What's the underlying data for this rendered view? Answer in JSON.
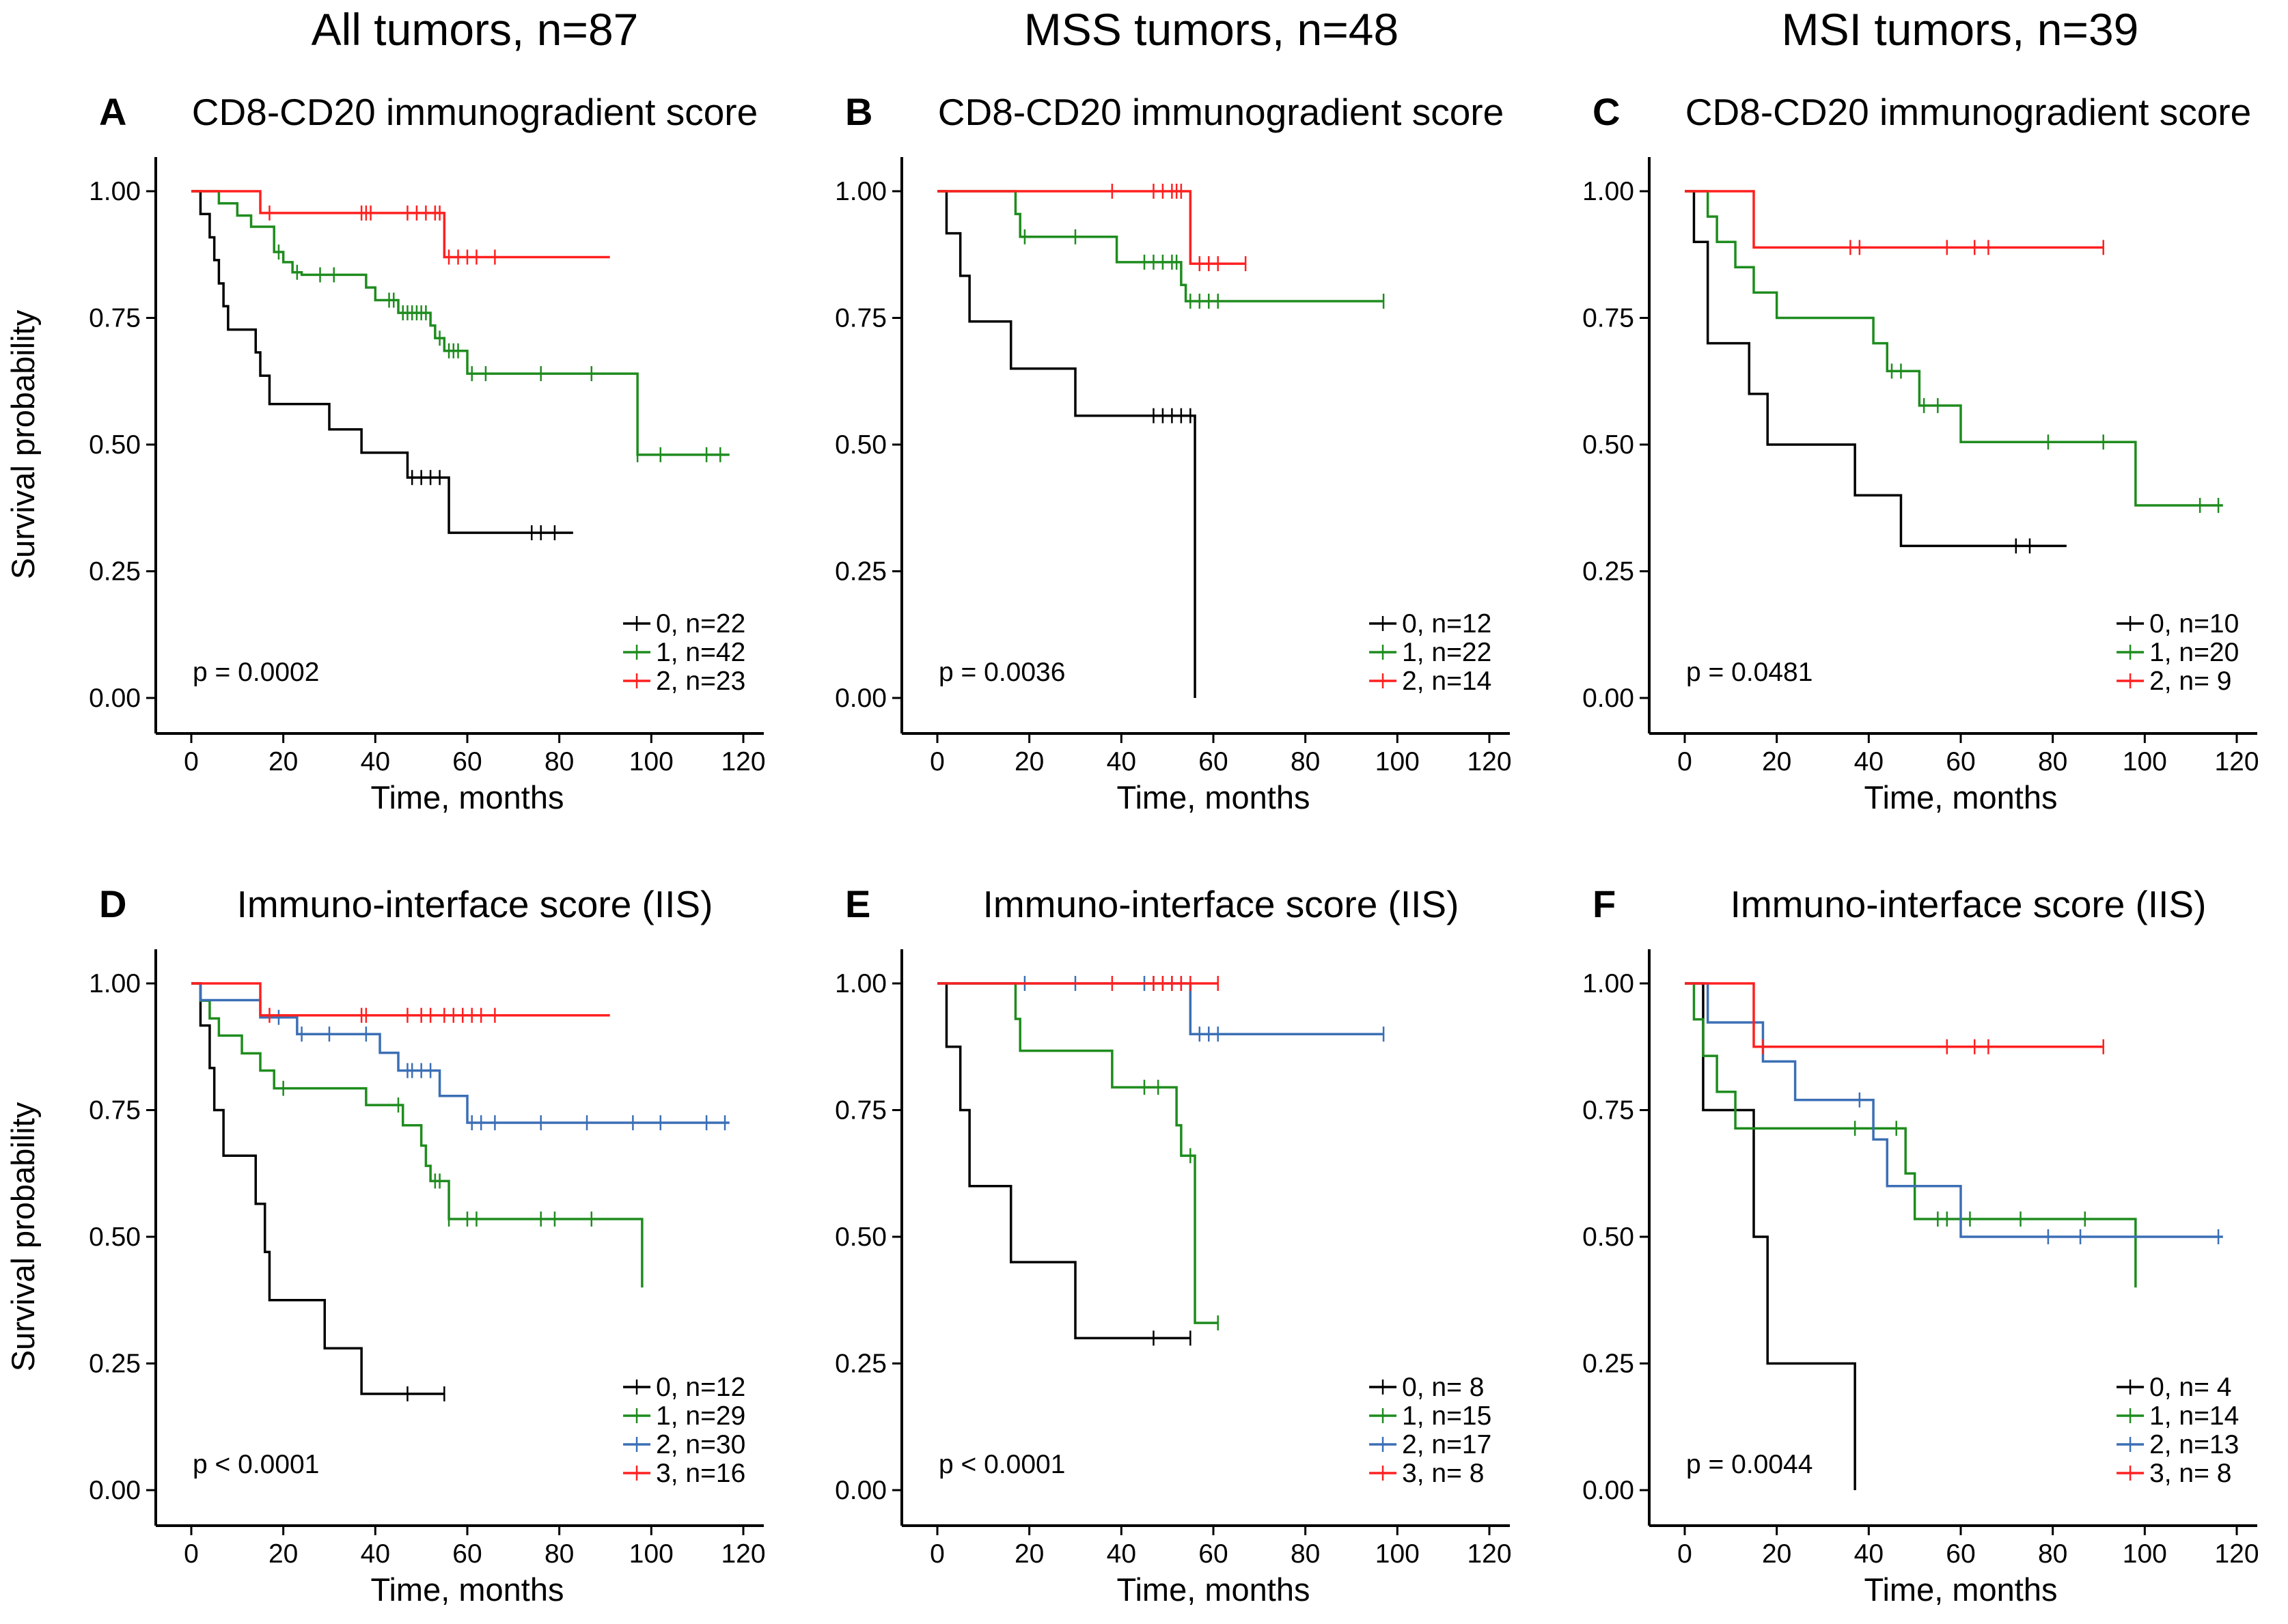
{
  "column_titles": [
    "All tumors, n=87",
    "MSS tumors, n=48",
    "MSI tumors, n=39"
  ],
  "colors": {
    "0": "#000000",
    "1": "#1e8c1e",
    "2_cd": "#ff2020",
    "2_iis": "#3b6fb5",
    "3": "#ff2020"
  },
  "chart_data": [
    {
      "type": "line",
      "panel": "A",
      "title": "CD8-CD20 immunogradient score",
      "xlabel": "Time, months",
      "ylabel": "Survival probability",
      "xlim": [
        0,
        120
      ],
      "ylim": [
        0,
        1
      ],
      "xticks": [
        "0",
        "20",
        "40",
        "60",
        "80",
        "100",
        "120"
      ],
      "yticks": [
        "0.00",
        "0.25",
        "0.50",
        "0.75",
        "1.00"
      ],
      "pvalue": "p = 0.0002",
      "series": [
        {
          "name": "0, n=22",
          "color": "#000000",
          "end": 83,
          "steps": [
            [
              0,
              1
            ],
            [
              2,
              0.955
            ],
            [
              4,
              0.909
            ],
            [
              5,
              0.864
            ],
            [
              6,
              0.818
            ],
            [
              7,
              0.773
            ],
            [
              8,
              0.727
            ],
            [
              14,
              0.682
            ],
            [
              15,
              0.636
            ],
            [
              17,
              0.58
            ],
            [
              30,
              0.53
            ],
            [
              37,
              0.484
            ],
            [
              47,
              0.435
            ],
            [
              56,
              0.326
            ]
          ],
          "censor": [
            48,
            50,
            52,
            54,
            74,
            76,
            79
          ]
        },
        {
          "name": "1, n=42",
          "color": "#1e8c1e",
          "end": 117,
          "steps": [
            [
              0,
              1
            ],
            [
              6,
              0.976
            ],
            [
              10,
              0.952
            ],
            [
              13,
              0.93
            ],
            [
              18,
              0.905
            ],
            [
              18,
              0.88
            ],
            [
              20,
              0.86
            ],
            [
              22,
              0.84
            ],
            [
              24,
              0.835
            ],
            [
              38,
              0.81
            ],
            [
              40,
              0.785
            ],
            [
              45,
              0.76
            ],
            [
              52,
              0.735
            ],
            [
              53,
              0.71
            ],
            [
              55,
              0.685
            ],
            [
              60,
              0.64
            ],
            [
              97,
              0.48
            ]
          ],
          "censor": [
            19,
            23,
            28,
            31,
            43,
            44,
            46,
            47,
            48,
            49,
            50,
            51,
            54,
            56,
            57,
            58,
            61,
            64,
            76,
            87,
            97,
            102,
            112,
            115
          ]
        },
        {
          "name": "2, n=23",
          "color": "#ff2020",
          "end": 91,
          "steps": [
            [
              0,
              1
            ],
            [
              15,
              0.957
            ],
            [
              55,
              0.87
            ]
          ],
          "censor": [
            17,
            37,
            38,
            39,
            47,
            49,
            51,
            53,
            54,
            56,
            58,
            60,
            62,
            66
          ]
        }
      ]
    },
    {
      "type": "line",
      "panel": "B",
      "title": "CD8-CD20 immunogradient score",
      "xlabel": "Time, months",
      "ylabel": "",
      "xlim": [
        0,
        120
      ],
      "ylim": [
        0,
        1
      ],
      "xticks": [
        "0",
        "20",
        "40",
        "60",
        "80",
        "100",
        "120"
      ],
      "yticks": [
        "0.00",
        "0.25",
        "0.50",
        "0.75",
        "1.00"
      ],
      "pvalue": "p = 0.0036",
      "series": [
        {
          "name": "0, n=12",
          "color": "#000000",
          "end": 56,
          "steps": [
            [
              0,
              1
            ],
            [
              2,
              0.917
            ],
            [
              5,
              0.833
            ],
            [
              6,
              0.833
            ],
            [
              7,
              0.743
            ],
            [
              16,
              0.65
            ],
            [
              30,
              0.557
            ],
            [
              56,
              0
            ]
          ],
          "censor": [
            47,
            49,
            51,
            53,
            55
          ]
        },
        {
          "name": "1, n=22",
          "color": "#1e8c1e",
          "end": 97,
          "steps": [
            [
              0,
              1
            ],
            [
              17,
              0.955
            ],
            [
              18,
              0.91
            ],
            [
              39,
              0.86
            ],
            [
              53,
              0.815
            ],
            [
              54,
              0.783
            ]
          ],
          "censor": [
            19,
            30,
            45,
            47,
            49,
            51,
            52,
            55,
            57,
            59,
            61,
            97
          ]
        },
        {
          "name": "2, n=14",
          "color": "#ff2020",
          "end": 67,
          "steps": [
            [
              0,
              1
            ],
            [
              55,
              0.857
            ]
          ],
          "censor": [
            38,
            47,
            49,
            51,
            52,
            53,
            57,
            59,
            61,
            67
          ]
        }
      ]
    },
    {
      "type": "line",
      "panel": "C",
      "title": "CD8-CD20 immunogradient score",
      "xlabel": "Time, months",
      "ylabel": "",
      "xlim": [
        0,
        120
      ],
      "ylim": [
        0,
        1
      ],
      "xticks": [
        "0",
        "20",
        "40",
        "60",
        "80",
        "100",
        "120"
      ],
      "yticks": [
        "0.00",
        "0.25",
        "0.50",
        "0.75",
        "1.00"
      ],
      "pvalue": "p = 0.0481",
      "series": [
        {
          "name": "0, n=10",
          "color": "#000000",
          "end": 83,
          "steps": [
            [
              0,
              1
            ],
            [
              2,
              0.9
            ],
            [
              5,
              0.8
            ],
            [
              5,
              0.7
            ],
            [
              14,
              0.6
            ],
            [
              18,
              0.5
            ],
            [
              37,
              0.4
            ],
            [
              47,
              0.3
            ]
          ],
          "censor": [
            72,
            75
          ]
        },
        {
          "name": "1, n=20",
          "color": "#1e8c1e",
          "end": 117,
          "steps": [
            [
              0,
              1
            ],
            [
              5,
              0.95
            ],
            [
              7,
              0.9
            ],
            [
              11,
              0.85
            ],
            [
              15,
              0.8
            ],
            [
              20,
              0.75
            ],
            [
              41,
              0.7
            ],
            [
              44,
              0.645
            ],
            [
              51,
              0.577
            ],
            [
              60,
              0.505
            ],
            [
              98,
              0.38
            ]
          ],
          "censor": [
            45,
            47,
            52,
            55,
            79,
            91,
            112,
            116
          ]
        },
        {
          "name": "2, n=  9",
          "color": "#ff2020",
          "end": 91,
          "steps": [
            [
              0,
              1
            ],
            [
              15,
              0.889
            ]
          ],
          "censor": [
            36,
            38,
            57,
            63,
            66,
            91
          ]
        }
      ]
    },
    {
      "type": "line",
      "panel": "D",
      "title": "Immuno-interface score (IIS)",
      "xlabel": "Time, months",
      "ylabel": "Survival probability",
      "xlim": [
        0,
        120
      ],
      "ylim": [
        0,
        1
      ],
      "xticks": [
        "0",
        "20",
        "40",
        "60",
        "80",
        "100",
        "120"
      ],
      "yticks": [
        "0.00",
        "0.25",
        "0.50",
        "0.75",
        "1.00"
      ],
      "pvalue": "p < 0.0001",
      "series": [
        {
          "name": "0, n=12",
          "color": "#000000",
          "end": 55,
          "steps": [
            [
              0,
              1
            ],
            [
              2,
              0.917
            ],
            [
              4,
              0.833
            ],
            [
              5,
              0.75
            ],
            [
              7,
              0.66
            ],
            [
              14,
              0.565
            ],
            [
              16,
              0.47
            ],
            [
              17,
              0.375
            ],
            [
              29,
              0.28
            ],
            [
              37,
              0.19
            ]
          ],
          "censor": [
            47,
            55
          ]
        },
        {
          "name": "1, n=29",
          "color": "#1e8c1e",
          "end": 98,
          "steps": [
            [
              0,
              1
            ],
            [
              2,
              0.966
            ],
            [
              4,
              0.931
            ],
            [
              6,
              0.897
            ],
            [
              11,
              0.862
            ],
            [
              15,
              0.828
            ],
            [
              18,
              0.793
            ],
            [
              38,
              0.76
            ],
            [
              46,
              0.72
            ],
            [
              50,
              0.68
            ],
            [
              51,
              0.64
            ],
            [
              52,
              0.61
            ],
            [
              56,
              0.535
            ],
            [
              98,
              0.4
            ]
          ],
          "censor": [
            20,
            45,
            53,
            54,
            56,
            60,
            62,
            76,
            79,
            87
          ]
        },
        {
          "name": "2, n=30",
          "color": "#3b6fb5",
          "end": 117,
          "steps": [
            [
              0,
              1
            ],
            [
              2,
              0.967
            ],
            [
              15,
              0.933
            ],
            [
              23,
              0.9
            ],
            [
              41,
              0.863
            ],
            [
              45,
              0.828
            ],
            [
              54,
              0.778
            ],
            [
              60,
              0.725
            ]
          ],
          "censor": [
            19,
            24,
            30,
            38,
            47,
            48,
            50,
            52,
            61,
            63,
            66,
            76,
            86,
            96,
            102,
            112,
            116
          ]
        },
        {
          "name": "3, n=16",
          "color": "#ff2020",
          "end": 91,
          "steps": [
            [
              0,
              1
            ],
            [
              15,
              0.937
            ]
          ],
          "censor": [
            17,
            37,
            38,
            47,
            50,
            52,
            55,
            57,
            59,
            61,
            63,
            66
          ]
        }
      ]
    },
    {
      "type": "line",
      "panel": "E",
      "title": "Immuno-interface score (IIS)",
      "xlabel": "Time, months",
      "ylabel": "",
      "xlim": [
        0,
        120
      ],
      "ylim": [
        0,
        1
      ],
      "xticks": [
        "0",
        "20",
        "40",
        "60",
        "80",
        "100",
        "120"
      ],
      "yticks": [
        "0.00",
        "0.25",
        "0.50",
        "0.75",
        "1.00"
      ],
      "pvalue": "p < 0.0001",
      "series": [
        {
          "name": "0, n=  8",
          "color": "#000000",
          "end": 55,
          "steps": [
            [
              0,
              1
            ],
            [
              2,
              0.875
            ],
            [
              5,
              0.75
            ],
            [
              6,
              0.75
            ],
            [
              7,
              0.6
            ],
            [
              16,
              0.45
            ],
            [
              30,
              0.3
            ]
          ],
          "censor": [
            47,
            55
          ]
        },
        {
          "name": "1, n=15",
          "color": "#1e8c1e",
          "end": 61,
          "steps": [
            [
              0,
              1
            ],
            [
              17,
              0.93
            ],
            [
              18,
              0.867
            ],
            [
              38,
              0.795
            ],
            [
              52,
              0.72
            ],
            [
              53,
              0.66
            ],
            [
              56,
              0.33
            ]
          ],
          "censor": [
            45,
            48,
            55,
            61
          ]
        },
        {
          "name": "2, n=17",
          "color": "#3b6fb5",
          "end": 97,
          "steps": [
            [
              0,
              1
            ],
            [
              55,
              0.9
            ]
          ],
          "censor": [
            19,
            30,
            45,
            47,
            49,
            51,
            53,
            57,
            59,
            61,
            97
          ]
        },
        {
          "name": "3, n=  8",
          "color": "#ff2020",
          "end": 61,
          "steps": [
            [
              0,
              1
            ]
          ],
          "censor": [
            38,
            47,
            49,
            51,
            53,
            55,
            61
          ]
        }
      ]
    },
    {
      "type": "line",
      "panel": "F",
      "title": "Immuno-interface score (IIS)",
      "xlabel": "Time, months",
      "ylabel": "",
      "xlim": [
        0,
        120
      ],
      "ylim": [
        0,
        1
      ],
      "xticks": [
        "0",
        "20",
        "40",
        "60",
        "80",
        "100",
        "120"
      ],
      "yticks": [
        "0.00",
        "0.25",
        "0.50",
        "0.75",
        "1.00"
      ],
      "pvalue": "p = 0.0044",
      "series": [
        {
          "name": "0, n=  4",
          "color": "#000000",
          "end": 37,
          "steps": [
            [
              0,
              1
            ],
            [
              4,
              0.75
            ],
            [
              15,
              0.5
            ],
            [
              18,
              0.25
            ],
            [
              37,
              0
            ]
          ],
          "censor": []
        },
        {
          "name": "1, n=14",
          "color": "#1e8c1e",
          "end": 98,
          "steps": [
            [
              0,
              1
            ],
            [
              2,
              0.929
            ],
            [
              4,
              0.857
            ],
            [
              7,
              0.786
            ],
            [
              11,
              0.714
            ],
            [
              48,
              0.625
            ],
            [
              50,
              0.535
            ],
            [
              98,
              0.4
            ]
          ],
          "censor": [
            37,
            46,
            55,
            57,
            62,
            73,
            87
          ]
        },
        {
          "name": "2, n=13",
          "color": "#3b6fb5",
          "end": 117,
          "steps": [
            [
              0,
              1
            ],
            [
              5,
              0.923
            ],
            [
              17,
              0.846
            ],
            [
              24,
              0.77
            ],
            [
              41,
              0.692
            ],
            [
              44,
              0.6
            ],
            [
              60,
              0.5
            ]
          ],
          "censor": [
            38,
            79,
            86,
            116
          ]
        },
        {
          "name": "3, n=  8",
          "color": "#ff2020",
          "end": 91,
          "steps": [
            [
              0,
              1
            ],
            [
              15,
              0.875
            ]
          ],
          "censor": [
            17,
            57,
            63,
            66,
            91
          ]
        }
      ]
    }
  ]
}
